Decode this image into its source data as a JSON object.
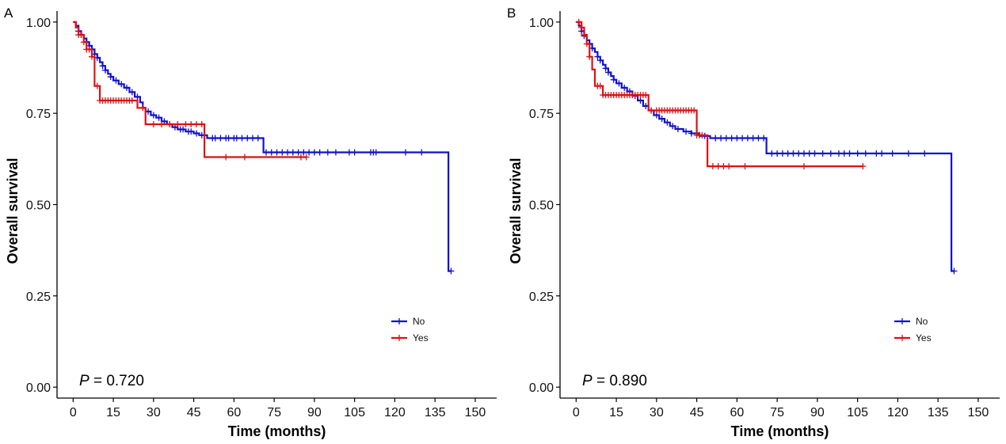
{
  "chart_data": [
    {
      "type": "line",
      "subtype": "kaplan-meier",
      "panel": "A",
      "xlabel": "Time (months)",
      "ylabel": "Overall survival",
      "xlim": [
        -6,
        158
      ],
      "ylim": [
        -0.03,
        1.03
      ],
      "xticks": [
        0,
        15,
        30,
        45,
        60,
        75,
        90,
        105,
        120,
        135,
        150
      ],
      "yticks": [
        0.0,
        0.25,
        0.5,
        0.75,
        1.0
      ],
      "ytick_labels": [
        "0.00",
        "0.25",
        "0.50",
        "0.75",
        "1.00"
      ],
      "pvalue_label": "P",
      "pvalue_text": " = 0.720",
      "legend_position": "bottom-right",
      "series": [
        {
          "name": "No",
          "color": "#1010cc",
          "steps": [
            [
              0,
              1.0
            ],
            [
              1,
              0.99
            ],
            [
              2,
              0.975
            ],
            [
              3,
              0.965
            ],
            [
              4,
              0.955
            ],
            [
              5,
              0.945
            ],
            [
              6,
              0.935
            ],
            [
              7,
              0.925
            ],
            [
              8,
              0.912
            ],
            [
              9,
              0.902
            ],
            [
              10,
              0.89
            ],
            [
              11,
              0.88
            ],
            [
              12,
              0.868
            ],
            [
              13,
              0.858
            ],
            [
              14,
              0.85
            ],
            [
              15,
              0.84
            ],
            [
              17,
              0.83
            ],
            [
              19,
              0.82
            ],
            [
              21,
              0.808
            ],
            [
              23,
              0.795
            ],
            [
              25,
              0.78
            ],
            [
              26,
              0.765
            ],
            [
              27,
              0.755
            ],
            [
              29,
              0.745
            ],
            [
              31,
              0.738
            ],
            [
              33,
              0.728
            ],
            [
              35,
              0.72
            ],
            [
              37,
              0.712
            ],
            [
              39,
              0.706
            ],
            [
              42,
              0.7
            ],
            [
              45,
              0.695
            ],
            [
              47,
              0.69
            ],
            [
              50,
              0.682
            ],
            [
              71,
              0.643
            ],
            [
              140,
              0.318
            ],
            [
              141,
              0.318
            ]
          ],
          "censor_x": [
            2,
            3,
            5,
            6,
            8,
            9,
            11,
            12,
            14,
            16,
            18,
            20,
            22,
            24,
            28,
            30,
            32,
            34,
            36,
            38,
            40,
            41,
            43,
            44,
            46,
            48,
            52,
            53,
            55,
            57,
            58,
            60,
            61,
            63,
            65,
            67,
            69,
            72,
            74,
            76,
            78,
            80,
            82,
            84,
            86,
            88,
            90,
            92,
            95,
            98,
            103,
            105,
            111,
            112,
            113,
            124,
            130,
            141
          ]
        },
        {
          "name": "Yes",
          "color": "#dd1111",
          "steps": [
            [
              0,
              1.0
            ],
            [
              1,
              0.985
            ],
            [
              2,
              0.965
            ],
            [
              4,
              0.945
            ],
            [
              5,
              0.925
            ],
            [
              7,
              0.905
            ],
            [
              8,
              0.825
            ],
            [
              10,
              0.785
            ],
            [
              24,
              0.765
            ],
            [
              27,
              0.72
            ],
            [
              49,
              0.63
            ],
            [
              87,
              0.63
            ]
          ],
          "censor_x": [
            2,
            3,
            4,
            5,
            6,
            7,
            9,
            10,
            11,
            12,
            13,
            14,
            15,
            16,
            17,
            18,
            19,
            20,
            21,
            22,
            26,
            30,
            33,
            36,
            39,
            42,
            44,
            46,
            48,
            57,
            64,
            85,
            87
          ]
        }
      ]
    },
    {
      "type": "line",
      "subtype": "kaplan-meier",
      "panel": "B",
      "xlabel": "Time (months)",
      "ylabel": "Overall survival",
      "xlim": [
        -6,
        158
      ],
      "ylim": [
        -0.03,
        1.03
      ],
      "xticks": [
        0,
        15,
        30,
        45,
        60,
        75,
        90,
        105,
        120,
        135,
        150
      ],
      "yticks": [
        0.0,
        0.25,
        0.5,
        0.75,
        1.0
      ],
      "ytick_labels": [
        "0.00",
        "0.25",
        "0.50",
        "0.75",
        "1.00"
      ],
      "pvalue_label": "P",
      "pvalue_text": " = 0.890",
      "legend_position": "bottom-right",
      "series": [
        {
          "name": "No",
          "color": "#1010cc",
          "steps": [
            [
              0,
              1.0
            ],
            [
              1,
              0.99
            ],
            [
              2,
              0.975
            ],
            [
              3,
              0.962
            ],
            [
              4,
              0.95
            ],
            [
              5,
              0.94
            ],
            [
              6,
              0.928
            ],
            [
              7,
              0.918
            ],
            [
              8,
              0.905
            ],
            [
              9,
              0.895
            ],
            [
              10,
              0.883
            ],
            [
              11,
              0.873
            ],
            [
              12,
              0.862
            ],
            [
              13,
              0.852
            ],
            [
              14,
              0.842
            ],
            [
              15,
              0.832
            ],
            [
              17,
              0.82
            ],
            [
              19,
              0.81
            ],
            [
              21,
              0.798
            ],
            [
              23,
              0.785
            ],
            [
              25,
              0.77
            ],
            [
              27,
              0.758
            ],
            [
              29,
              0.745
            ],
            [
              31,
              0.735
            ],
            [
              33,
              0.725
            ],
            [
              35,
              0.715
            ],
            [
              37,
              0.707
            ],
            [
              40,
              0.7
            ],
            [
              43,
              0.695
            ],
            [
              46,
              0.688
            ],
            [
              50,
              0.682
            ],
            [
              71,
              0.64
            ],
            [
              140,
              0.318
            ],
            [
              141,
              0.318
            ]
          ],
          "censor_x": [
            2,
            3,
            5,
            6,
            8,
            9,
            11,
            12,
            14,
            16,
            18,
            20,
            22,
            24,
            26,
            28,
            30,
            32,
            34,
            36,
            38,
            41,
            43,
            45,
            48,
            52,
            54,
            56,
            58,
            60,
            62,
            64,
            66,
            68,
            70,
            73,
            75,
            77,
            79,
            81,
            83,
            85,
            87,
            89,
            92,
            95,
            98,
            100,
            102,
            105,
            108,
            112,
            114,
            118,
            124,
            130,
            141
          ]
        },
        {
          "name": "Yes",
          "color": "#dd1111",
          "steps": [
            [
              0,
              1.0
            ],
            [
              2,
              0.985
            ],
            [
              3,
              0.965
            ],
            [
              4,
              0.94
            ],
            [
              5,
              0.905
            ],
            [
              6,
              0.87
            ],
            [
              7,
              0.825
            ],
            [
              10,
              0.8
            ],
            [
              18,
              0.8
            ],
            [
              27,
              0.758
            ],
            [
              45,
              0.69
            ],
            [
              49,
              0.605
            ],
            [
              107,
              0.605
            ]
          ],
          "censor_x": [
            1,
            2,
            3,
            4,
            5,
            8,
            9,
            10,
            11,
            12,
            13,
            14,
            15,
            16,
            17,
            18,
            19,
            20,
            21,
            22,
            23,
            24,
            25,
            26,
            28,
            30,
            31,
            32,
            33,
            34,
            35,
            36,
            37,
            38,
            39,
            40,
            41,
            42,
            43,
            44,
            45,
            46,
            47,
            51,
            53,
            55,
            57,
            63,
            85,
            107
          ]
        }
      ]
    }
  ]
}
